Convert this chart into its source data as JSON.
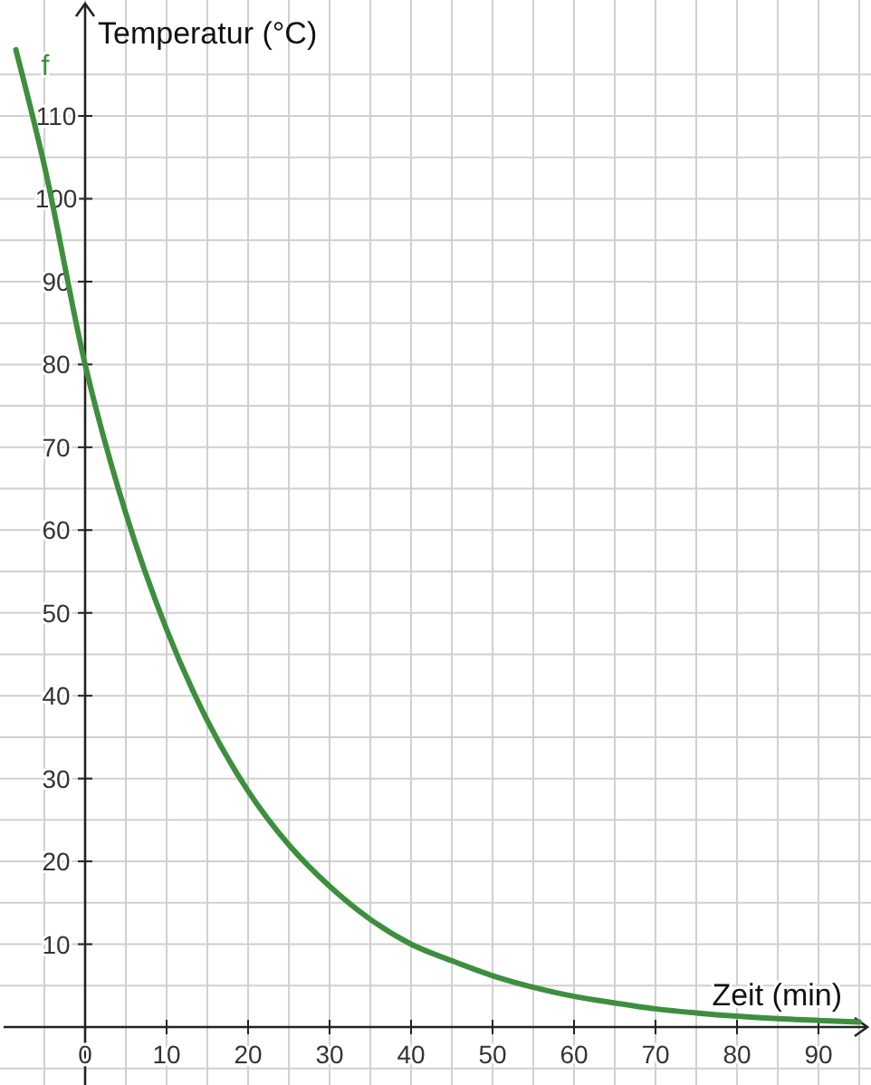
{
  "chart_data": {
    "type": "line",
    "xlabel": "Zeit (min)",
    "ylabel": "Temperatur (°C)",
    "xlim": [
      -10,
      96
    ],
    "ylim": [
      -7,
      124
    ],
    "xticks": [
      {
        "value": -5,
        "label": null
      },
      0,
      {
        "value": 5,
        "label": null
      },
      10,
      {
        "value": 15,
        "label": null
      },
      20,
      {
        "value": 25,
        "label": null
      },
      30,
      {
        "value": 35,
        "label": null
      },
      40,
      {
        "value": 45,
        "label": null
      },
      50,
      {
        "value": 55,
        "label": null
      },
      60,
      {
        "value": 65,
        "label": null
      },
      70,
      {
        "value": 75,
        "label": null
      },
      80,
      {
        "value": 85,
        "label": null
      },
      90,
      {
        "value": 95,
        "label": null
      }
    ],
    "yticks": [
      {
        "value": -5,
        "label": null
      },
      {
        "value": 5,
        "label": null
      },
      10,
      {
        "value": 15,
        "label": null
      },
      20,
      {
        "value": 25,
        "label": null
      },
      30,
      {
        "value": 35,
        "label": null
      },
      40,
      {
        "value": 45,
        "label": null
      },
      50,
      {
        "value": 55,
        "label": null
      },
      60,
      {
        "value": 65,
        "label": null
      },
      70,
      {
        "value": 75,
        "label": null
      },
      80,
      {
        "value": 85,
        "label": null
      },
      90,
      {
        "value": 95,
        "label": null
      },
      100,
      {
        "value": 105,
        "label": null
      },
      110,
      {
        "value": 115,
        "label": null
      }
    ],
    "grid": true,
    "marker": "none",
    "line_style": "solid",
    "series": [
      {
        "name": "f",
        "color": "#3d8f3d",
        "x": [
          -8.5,
          -5,
          0,
          5,
          10,
          15,
          20,
          25,
          30,
          35,
          40,
          45,
          50,
          55,
          60,
          65,
          70,
          75,
          80,
          85,
          90,
          95
        ],
        "values": [
          118,
          104,
          80,
          62,
          48,
          37,
          28.5,
          22,
          17,
          13,
          10,
          8,
          6.2,
          4.8,
          3.7,
          2.9,
          2.2,
          1.7,
          1.3,
          1,
          0.8,
          0.6
        ]
      }
    ]
  }
}
